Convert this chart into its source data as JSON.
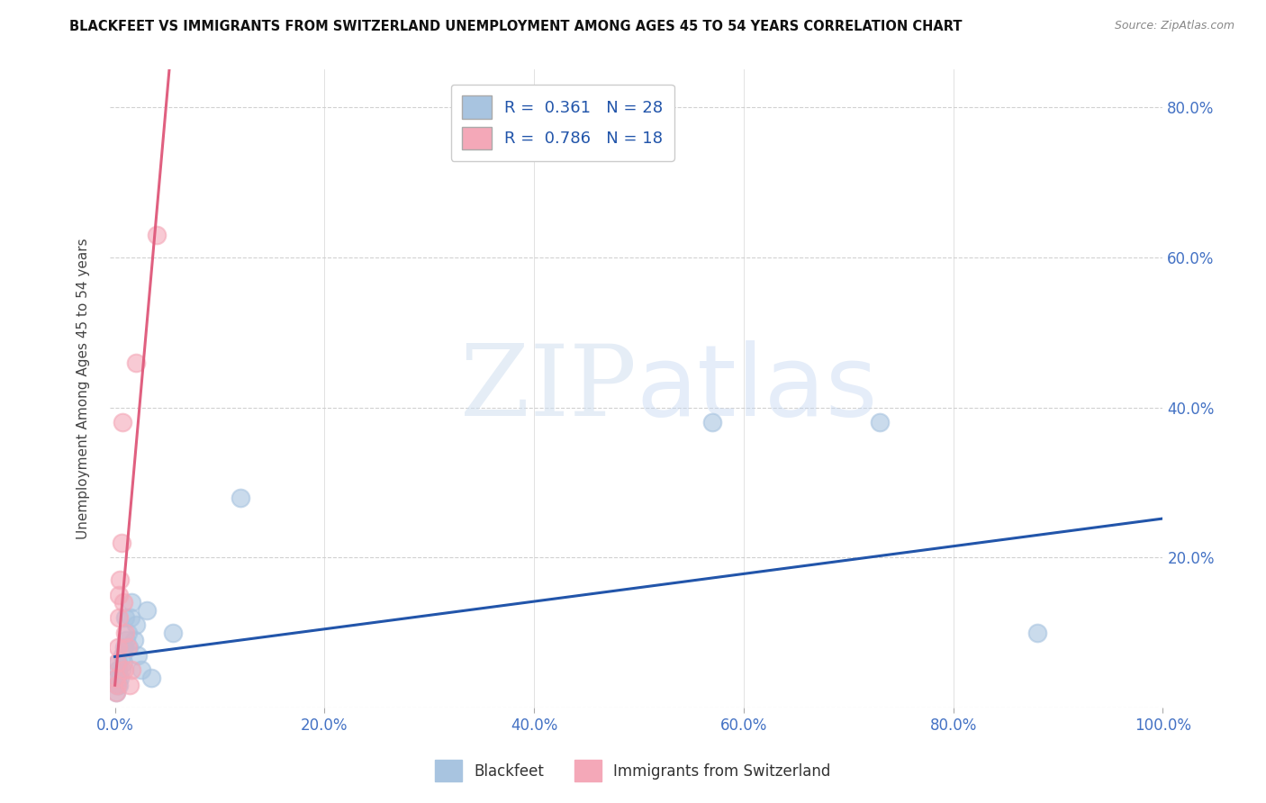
{
  "title": "BLACKFEET VS IMMIGRANTS FROM SWITZERLAND UNEMPLOYMENT AMONG AGES 45 TO 54 YEARS CORRELATION CHART",
  "source": "Source: ZipAtlas.com",
  "tick_color": "#4472c4",
  "ylabel": "Unemployment Among Ages 45 to 54 years",
  "xticklabels": [
    "0.0%",
    "20.0%",
    "40.0%",
    "60.0%",
    "80.0%",
    "100.0%"
  ],
  "xtick_vals": [
    0.0,
    0.2,
    0.4,
    0.6,
    0.8,
    1.0
  ],
  "ytick_vals": [
    0.0,
    0.2,
    0.4,
    0.6,
    0.8
  ],
  "ytick_labels": [
    "",
    "20.0%",
    "40.0%",
    "60.0%",
    "80.0%"
  ],
  "blackfeet_x": [
    0.001,
    0.002,
    0.002,
    0.003,
    0.003,
    0.004,
    0.005,
    0.006,
    0.007,
    0.008,
    0.009,
    0.01,
    0.011,
    0.012,
    0.013,
    0.015,
    0.016,
    0.018,
    0.02,
    0.022,
    0.025,
    0.03,
    0.035,
    0.055,
    0.12,
    0.57,
    0.73,
    0.88
  ],
  "blackfeet_y": [
    0.02,
    0.03,
    0.04,
    0.05,
    0.06,
    0.03,
    0.04,
    0.05,
    0.07,
    0.06,
    0.08,
    0.12,
    0.09,
    0.1,
    0.08,
    0.12,
    0.14,
    0.09,
    0.11,
    0.07,
    0.05,
    0.13,
    0.04,
    0.1,
    0.28,
    0.38,
    0.38,
    0.1
  ],
  "swiss_x": [
    0.001,
    0.001,
    0.002,
    0.002,
    0.003,
    0.004,
    0.004,
    0.005,
    0.006,
    0.007,
    0.008,
    0.009,
    0.01,
    0.012,
    0.014,
    0.016,
    0.02,
    0.04
  ],
  "swiss_y": [
    0.02,
    0.04,
    0.03,
    0.06,
    0.08,
    0.12,
    0.15,
    0.17,
    0.22,
    0.38,
    0.14,
    0.05,
    0.1,
    0.08,
    0.03,
    0.05,
    0.46,
    0.63
  ],
  "blackfeet_color": "#a8c4e0",
  "swiss_color": "#f4a8b8",
  "blue_line_color": "#2255aa",
  "pink_line_color": "#e06080",
  "watermark_zip": "ZIP",
  "watermark_atlas": "atlas",
  "background_color": "#ffffff",
  "grid_color": "#cccccc",
  "ylim": [
    0,
    0.85
  ],
  "xlim": [
    -0.005,
    1.0
  ]
}
